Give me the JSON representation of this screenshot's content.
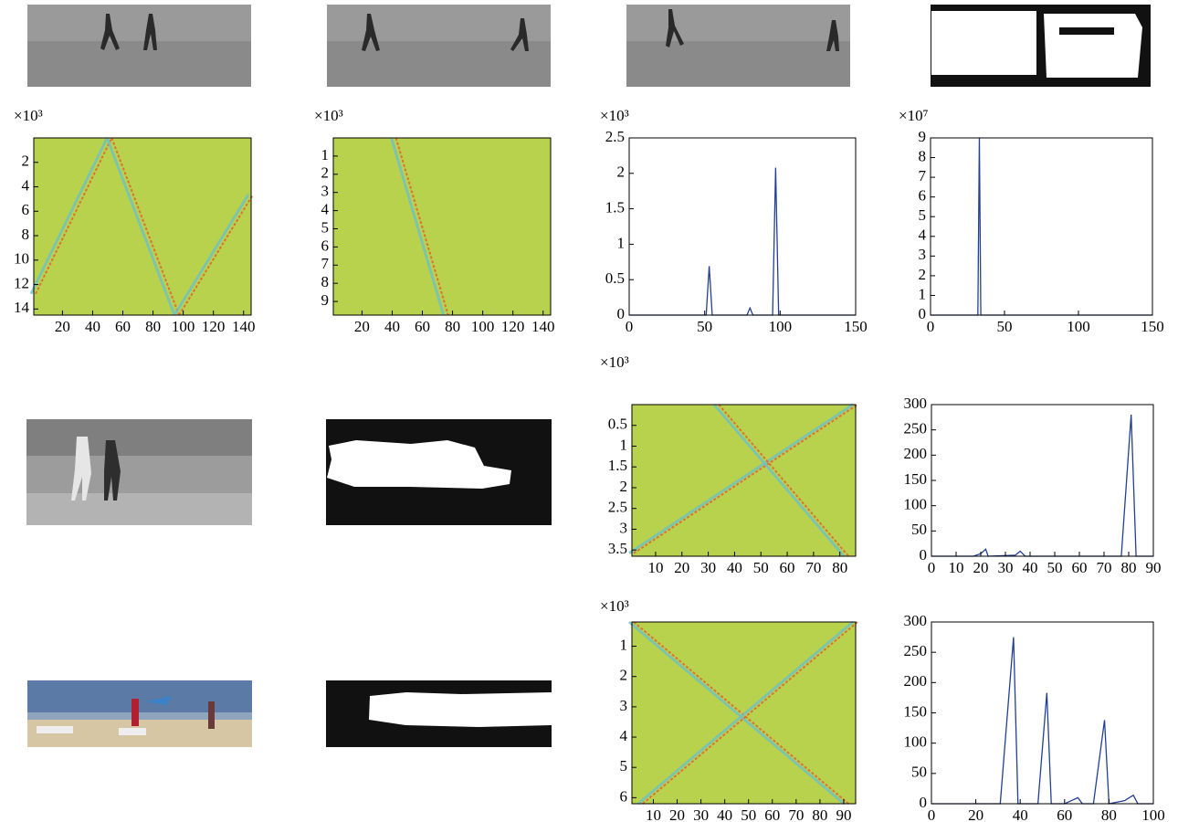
{
  "chart_data": [
    {
      "type": "heatmap",
      "multiplier": "×10³",
      "xlim": [
        1,
        145
      ],
      "ylim": [
        0,
        14.5
      ],
      "xticks": [
        20,
        40,
        60,
        80,
        100,
        120,
        140
      ],
      "yticks": [
        2,
        4,
        6,
        8,
        10,
        12,
        14
      ]
    },
    {
      "type": "heatmap",
      "multiplier": "×10³",
      "xlim": [
        1,
        145
      ],
      "ylim": [
        0,
        9.75
      ],
      "xticks": [
        20,
        40,
        60,
        80,
        100,
        120,
        140
      ],
      "yticks": [
        1,
        2,
        3,
        4,
        5,
        6,
        7,
        8,
        9
      ]
    },
    {
      "type": "line",
      "multiplier": "×10³",
      "color": "#233f94",
      "xlim": [
        0,
        150
      ],
      "ylim": [
        0,
        2.5
      ],
      "xticks": [
        0,
        50,
        100,
        150
      ],
      "yticks": [
        0,
        0.5,
        1,
        1.5,
        2,
        2.5
      ],
      "x": [
        0,
        51,
        53,
        55,
        78,
        80,
        82,
        95,
        97,
        99,
        150
      ],
      "values": [
        0,
        0,
        0.69,
        0,
        0,
        0.1,
        0,
        0,
        2.08,
        0,
        0
      ]
    },
    {
      "type": "line",
      "multiplier": "×10⁷",
      "color": "#233f94",
      "xlim": [
        0,
        150
      ],
      "ylim": [
        0,
        9
      ],
      "xticks": [
        0,
        50,
        100,
        150
      ],
      "yticks": [
        0,
        1,
        2,
        3,
        4,
        5,
        6,
        7,
        8,
        9
      ],
      "x": [
        0,
        32,
        33,
        34,
        150
      ],
      "values": [
        0,
        0,
        9,
        0,
        0
      ]
    },
    {
      "type": "heatmap",
      "multiplier": "×10³",
      "xlim": [
        1,
        86
      ],
      "ylim": [
        0,
        3.65
      ],
      "xticks": [
        10,
        20,
        30,
        40,
        50,
        60,
        70,
        80
      ],
      "yticks": [
        0.5,
        1,
        1.5,
        2,
        2.5,
        3,
        3.5
      ]
    },
    {
      "type": "line",
      "color": "#233f94",
      "xlim": [
        0,
        90
      ],
      "ylim": [
        0,
        300
      ],
      "xticks": [
        0,
        10,
        20,
        30,
        40,
        50,
        60,
        70,
        80,
        90
      ],
      "yticks": [
        0,
        50,
        100,
        150,
        200,
        250,
        300
      ],
      "x": [
        0,
        17,
        20,
        22,
        23,
        34,
        36,
        38,
        77,
        81,
        83,
        90
      ],
      "values": [
        0,
        0,
        5,
        14,
        0,
        2,
        10,
        0,
        0,
        280,
        0,
        0
      ]
    },
    {
      "type": "heatmap",
      "multiplier": "×10³",
      "xlim": [
        1,
        95
      ],
      "ylim": [
        0.2,
        6.2
      ],
      "xticks": [
        10,
        20,
        30,
        40,
        50,
        60,
        70,
        80,
        90
      ],
      "yticks": [
        1,
        2,
        3,
        4,
        5,
        6
      ]
    },
    {
      "type": "line",
      "color": "#233f94",
      "xlim": [
        0,
        100
      ],
      "ylim": [
        0,
        300
      ],
      "xticks": [
        0,
        20,
        40,
        60,
        80,
        100
      ],
      "yticks": [
        0,
        50,
        100,
        150,
        200,
        250,
        300
      ],
      "x": [
        0,
        31,
        37,
        39,
        48,
        52,
        54,
        60,
        63,
        66,
        68,
        73,
        78,
        80,
        87,
        91,
        93,
        100
      ],
      "values": [
        0,
        0,
        275,
        0,
        0,
        183,
        0,
        0,
        5,
        10,
        0,
        0,
        138,
        0,
        5,
        14,
        0,
        0
      ]
    }
  ]
}
